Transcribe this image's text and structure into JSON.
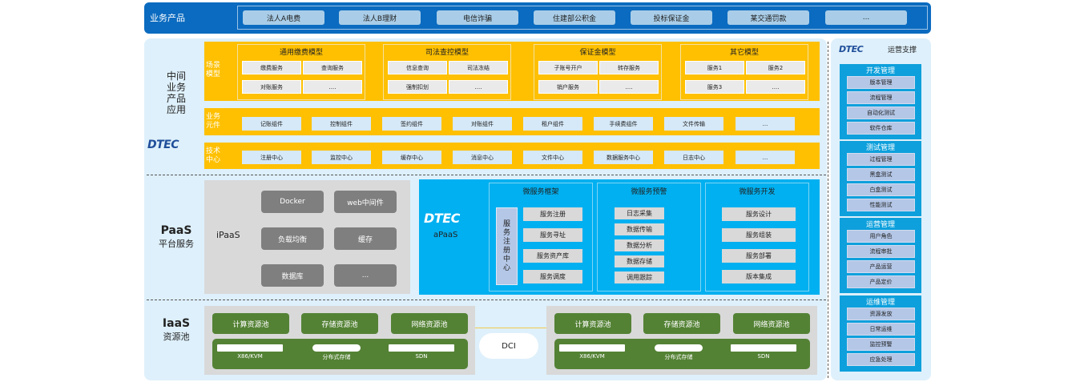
{
  "top": {
    "label": "业务产品",
    "products": [
      "法人A电费",
      "法人B理财",
      "电信诈骗",
      "住建部公积金",
      "投标保证金",
      "某交通罚款",
      "..."
    ]
  },
  "middle": {
    "label": "中间业务产品应用",
    "logo": "DTEC",
    "scene": {
      "label": "场景模型",
      "groups": [
        {
          "title": "通用缴费模型",
          "items": [
            "缴费服务",
            "查询服务",
            "对账服务",
            "...."
          ]
        },
        {
          "title": "司法查控模型",
          "items": [
            "信息查询",
            "司法冻结",
            "强制扣划",
            "...."
          ]
        },
        {
          "title": "保证金模型",
          "items": [
            "子账号开户",
            "转存服务",
            "销户服务",
            "...."
          ]
        },
        {
          "title": "其它模型",
          "items": [
            "服务1",
            "服务2",
            "服务3",
            "...."
          ]
        }
      ]
    },
    "components": {
      "label": "业务元件",
      "items": [
        "记账组件",
        "控制组件",
        "签约组件",
        "对账组件",
        "租户组件",
        "手续费组件",
        "文件传输",
        "..."
      ]
    },
    "tech": {
      "label": "技术中心",
      "items": [
        "注册中心",
        "监控中心",
        "缓存中心",
        "消息中心",
        "文件中心",
        "数据服务中心",
        "日志中心",
        "..."
      ]
    }
  },
  "paas": {
    "title": "PaaS",
    "subtitle": "平台服务",
    "ipaas": {
      "label": "iPaaS",
      "items": [
        "Docker",
        "web中间件",
        "负载均衡",
        "缓存",
        "数据库",
        "..."
      ]
    },
    "apaas": {
      "label": "aPaaS",
      "logo": "DTEC",
      "registry": "服务注册中心",
      "groups": [
        {
          "title": "微服务框架",
          "items": [
            "服务注册",
            "服务寻址",
            "服务资产库",
            "服务调度"
          ]
        },
        {
          "title": "微服务预警",
          "items": [
            "日志采集",
            "数据传输",
            "数据分析",
            "数据存储",
            "调用跟踪"
          ]
        },
        {
          "title": "微服务开发",
          "items": [
            "服务设计",
            "服务组装",
            "服务部署",
            "版本集成"
          ]
        }
      ]
    }
  },
  "iaas": {
    "title": "IaaS",
    "subtitle": "资源池",
    "dci": "DCI",
    "pools": [
      "计算资源池",
      "存储资源池",
      "网络资源池"
    ],
    "hardware": [
      "X86/KVM",
      "分布式存储",
      "SDN"
    ]
  },
  "ops": {
    "logo": "DTEC",
    "title": "运营支撑",
    "groups": [
      {
        "title": "开发管理",
        "items": [
          "版本管理",
          "流程管理",
          "自动化测试",
          "软件仓库"
        ]
      },
      {
        "title": "测试管理",
        "items": [
          "过程管理",
          "黑盒测试",
          "白盒测试",
          "性能测试"
        ]
      },
      {
        "title": "运营管理",
        "items": [
          "用户角色",
          "流程审批",
          "产品运营",
          "产品定价"
        ]
      },
      {
        "title": "运维管理",
        "items": [
          "资源发放",
          "日常运维",
          "监控预警",
          "应急处理"
        ]
      }
    ]
  },
  "colors": {
    "top": "#0b6bc0",
    "yellow": "#fec000",
    "apaas": "#00b0f0",
    "green": "#548235",
    "ops": "#0ea0dc"
  }
}
